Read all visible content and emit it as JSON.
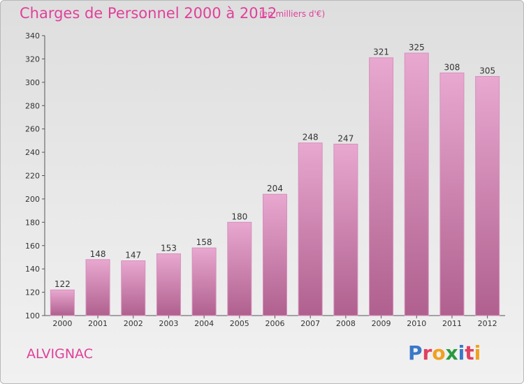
{
  "header": {
    "title": "Charges de Personnel 2000 à 2012",
    "subtitle": "(en milliers d'€)"
  },
  "footer": {
    "commune": "ALVIGNAC",
    "logo_text": "Proxiti"
  },
  "colors": {
    "accent": "#e0409a",
    "bar_top": "#e8a8d0",
    "bar_bottom": "#b0608e"
  },
  "chart_data": {
    "type": "bar",
    "categories": [
      "2000",
      "2001",
      "2002",
      "2003",
      "2004",
      "2005",
      "2006",
      "2007",
      "2008",
      "2009",
      "2010",
      "2011",
      "2012"
    ],
    "values": [
      122,
      148,
      147,
      153,
      158,
      180,
      204,
      248,
      247,
      321,
      325,
      308,
      305
    ],
    "ylim": [
      100,
      340
    ],
    "yticks": [
      100,
      120,
      140,
      160,
      180,
      200,
      220,
      240,
      260,
      280,
      300,
      320,
      340
    ],
    "grid": false
  }
}
